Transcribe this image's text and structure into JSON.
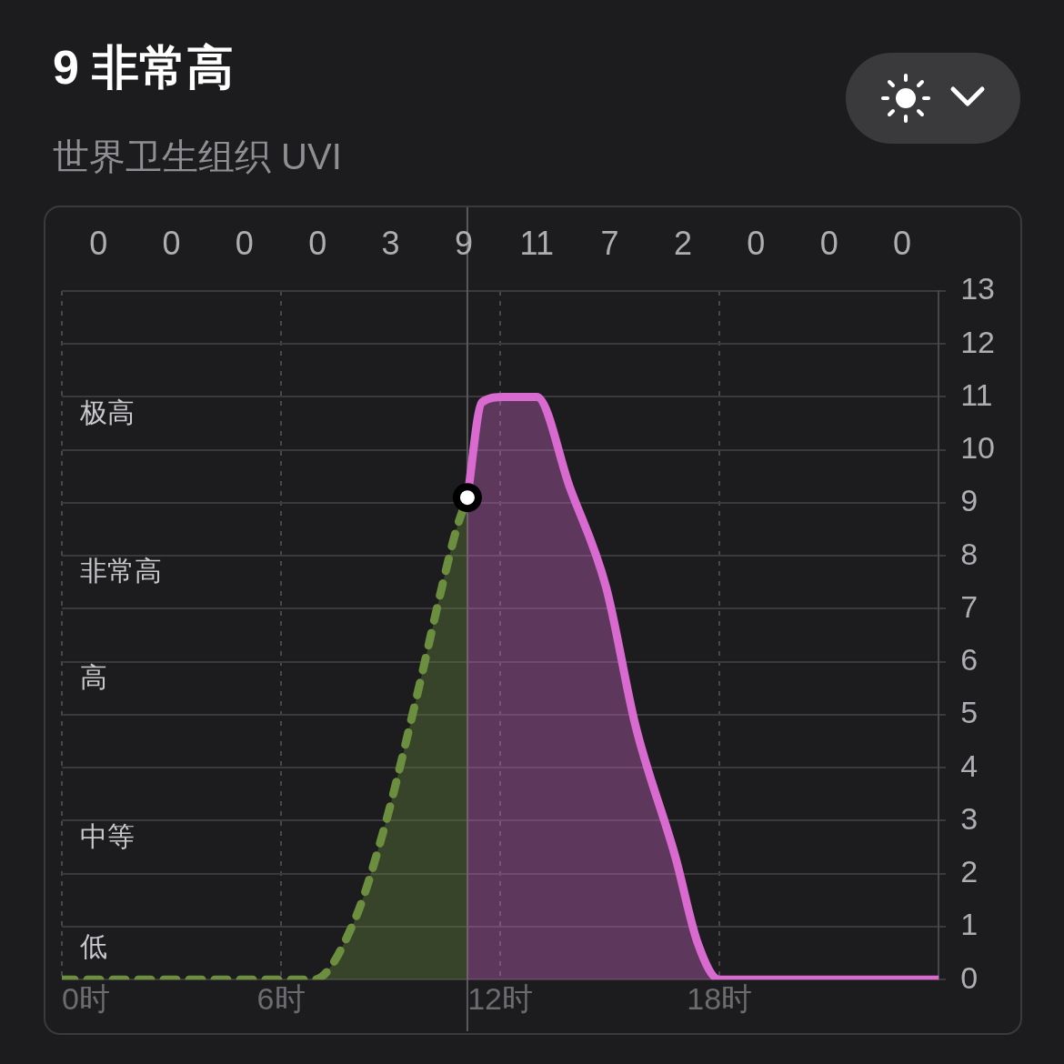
{
  "chart_data": {
    "type": "area",
    "title": "9 非常高",
    "subtitle": "世界卫生组织 UVI",
    "xlim": [
      0,
      24
    ],
    "xticks": [
      {
        "value": 0,
        "label": "0时"
      },
      {
        "value": 6,
        "label": "6时"
      },
      {
        "value": 12,
        "label": "12时"
      },
      {
        "value": 18,
        "label": "18时"
      },
      {
        "value": 24,
        "label": null
      }
    ],
    "ylim": [
      0,
      13
    ],
    "yticks": [
      0,
      1,
      2,
      3,
      4,
      5,
      6,
      7,
      8,
      9,
      10,
      11,
      12,
      13
    ],
    "grid": true,
    "legend": false,
    "series": [
      {
        "color": "#6b8f3e",
        "line_style": "dashed",
        "x": [
          0,
          6,
          6.9,
          8.0,
          8.8,
          9.7,
          10.4,
          10.8,
          11.1
        ],
        "values": [
          0,
          0,
          0,
          1.1,
          2.8,
          5.3,
          7.4,
          8.5,
          9.1
        ]
      },
      {
        "color": "#d86ad0",
        "line_style": "solid",
        "x": [
          11.1,
          11.5,
          12.1,
          13.0,
          13.9,
          14.9,
          15.7,
          16.8,
          17.4,
          18,
          24
        ],
        "values": [
          9.1,
          10.9,
          11,
          11,
          9.3,
          7.4,
          4.8,
          2.3,
          0.7,
          0,
          0
        ]
      },
      {
        "type": "scatter",
        "color": "#ffffff",
        "marker": "circle",
        "x": [
          11.1
        ],
        "values": [
          9.1
        ]
      }
    ],
    "ref_lines": [
      {
        "axis": "x",
        "value": 11.1,
        "color": "#5a5a5e"
      }
    ],
    "annotations": [
      "0",
      "0",
      "0",
      "0",
      "3",
      "9",
      "11",
      "7",
      "2",
      "0",
      "0",
      "0",
      "低",
      "中等",
      "高",
      "非常高",
      "极高"
    ]
  }
}
